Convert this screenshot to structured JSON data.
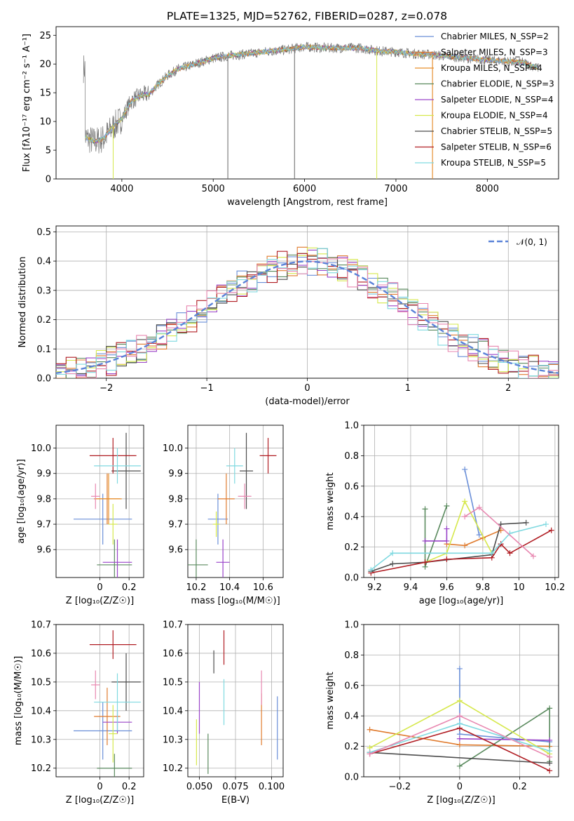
{
  "title": "PLATE=1325, MJD=52762, FIBERID=0287, z=0.078",
  "colors": {
    "chabrier_miles": "#6a8fd8",
    "salpeter_miles": "#e07b2e",
    "kroupa_miles": "#e78f2c",
    "chabrier_elodie": "#5a8a5e",
    "salpeter_elodie": "#9a44c9",
    "kroupa_elodie": "#d6e84c",
    "chabrier_stelib": "#4d4d4d",
    "salpeter_stelib": "#b01c22",
    "kroupa_stelib": "#7fd9e0",
    "normal_curve": "#5b83d8"
  },
  "chart_data": [
    {
      "id": "spectrum",
      "type": "line",
      "xlabel": "wavelength [Angstrom, rest frame]",
      "ylabel": "Flux [fλ10⁻¹⁷ erg cm⁻² s⁻¹ A⁻¹]",
      "xlim": [
        3280,
        8780
      ],
      "ylim": [
        0,
        26.5
      ],
      "xticks": [
        4000,
        5000,
        6000,
        7000,
        8000
      ],
      "yticks": [
        0,
        5,
        10,
        15,
        20,
        25
      ],
      "grid": false,
      "legend": "right",
      "legend_entries": [
        "Chabrier MILES, N_SSP=2",
        "Salpeter MILES, N_SSP=3",
        "Kroupa MILES, N_SSP=4",
        "Chabrier ELODIE, N_SSP=3",
        "Salpeter ELODIE, N_SSP=4",
        "Kroupa ELODIE, N_SSP=4",
        "Chabrier STELIB, N_SSP=5",
        "Salpeter STELIB, N_SSP=6",
        "Kroupa STELIB, N_SSP=5"
      ],
      "continuum": {
        "x": [
          3600,
          3700,
          3800,
          3900,
          4000,
          4100,
          4200,
          4300,
          4400,
          4500,
          4600,
          4700,
          4800,
          4900,
          5000,
          5200,
          5400,
          5600,
          5800,
          6000,
          6200,
          6400,
          6600,
          6800,
          7000,
          7200,
          7400,
          7600,
          7800,
          8000,
          8200,
          8400,
          8550
        ],
        "y": [
          7.2,
          6.5,
          7.0,
          9.0,
          10.5,
          13.5,
          14.5,
          14.8,
          16.5,
          18.0,
          19.0,
          19.5,
          20.0,
          20.5,
          21.0,
          21.5,
          21.8,
          22.2,
          22.5,
          23.0,
          22.8,
          22.8,
          22.8,
          22.3,
          22.1,
          21.8,
          21.6,
          21.3,
          21.0,
          20.7,
          20.5,
          20.2,
          19.3
        ]
      }
    },
    {
      "id": "residuals",
      "type": "area",
      "xlabel": "(data-model)/error",
      "ylabel": "Normed distribution",
      "xlim": [
        -2.5,
        2.5
      ],
      "ylim": [
        0,
        0.52
      ],
      "xticks": [
        -2,
        -1,
        0,
        1,
        2
      ],
      "yticks": [
        0.0,
        0.1,
        0.2,
        0.3,
        0.4,
        0.5
      ],
      "grid": true,
      "legend": "top-right",
      "legend_entries": [
        "𝒩(0, 1)"
      ],
      "bin_width": 0.1
    },
    {
      "id": "z_vs_age",
      "type": "scatter",
      "xlabel": "Z [log₁₀(Z/Z☉)]",
      "ylabel": "age  [log₁₀(age/yr)]",
      "xlim": [
        -0.3,
        0.3
      ],
      "ylim": [
        9.49,
        10.09
      ],
      "xticks": [
        0.0,
        0.2
      ],
      "yticks": [
        9.6,
        9.7,
        9.8,
        9.9,
        10.0
      ],
      "grid": true,
      "points": [
        {
          "model": "chabrier_miles",
          "x": 0.02,
          "y": 9.72,
          "xerr": 0.2,
          "yerr": 0.1
        },
        {
          "model": "salpeter_miles",
          "x": 0.05,
          "y": 9.8,
          "xerr": 0.09,
          "yerr": 0.1
        },
        {
          "model": "kroupa_miles",
          "x": 0.06,
          "y": 9.8,
          "xerr": 0.09,
          "yerr": 0.1
        },
        {
          "model": "chabrier_elodie",
          "x": 0.1,
          "y": 9.54,
          "xerr": 0.12,
          "yerr": 0.1
        },
        {
          "model": "salpeter_elodie",
          "x": 0.12,
          "y": 9.55,
          "xerr": 0.1,
          "yerr": 0.09
        },
        {
          "model": "kroupa_elodie",
          "x": 0.09,
          "y": 9.7,
          "xerr": 0.03,
          "yerr": 0.08
        },
        {
          "model": "chabrier_stelib",
          "x": 0.18,
          "y": 9.91,
          "xerr": 0.1,
          "yerr": 0.15
        },
        {
          "model": "salpeter_stelib",
          "x": 0.09,
          "y": 9.97,
          "xerr": 0.16,
          "yerr": 0.07
        },
        {
          "model": "kroupa_stelib",
          "x": 0.12,
          "y": 9.93,
          "xerr": 0.16,
          "yerr": 0.07
        },
        {
          "model": "pink",
          "x": -0.03,
          "y": 9.81,
          "xerr": 0.03,
          "yerr": 0.05
        }
      ]
    },
    {
      "id": "mass_vs_age",
      "type": "scatter",
      "xlabel": "mass [log₁₀(M/M☉)]",
      "ylabel": "",
      "xlim": [
        10.15,
        10.72
      ],
      "ylim": [
        9.49,
        10.09
      ],
      "xticks": [
        10.2,
        10.4,
        10.6
      ],
      "yticks": [
        9.6,
        9.7,
        9.8,
        9.9,
        10.0
      ],
      "grid": true,
      "points": [
        {
          "model": "chabrier_miles",
          "x": 10.33,
          "y": 9.72,
          "xerr": 0.06,
          "yerr": 0.1
        },
        {
          "model": "salpeter_miles",
          "x": 10.38,
          "y": 9.8,
          "xerr": 0.05,
          "yerr": 0.1
        },
        {
          "model": "chabrier_elodie",
          "x": 10.2,
          "y": 9.54,
          "xerr": 0.07,
          "yerr": 0.1
        },
        {
          "model": "salpeter_elodie",
          "x": 10.36,
          "y": 9.55,
          "xerr": 0.04,
          "yerr": 0.09
        },
        {
          "model": "kroupa_elodie",
          "x": 10.32,
          "y": 9.7,
          "xerr": 0.02,
          "yerr": 0.05
        },
        {
          "model": "chabrier_stelib",
          "x": 10.5,
          "y": 9.91,
          "xerr": 0.04,
          "yerr": 0.15
        },
        {
          "model": "salpeter_stelib",
          "x": 10.63,
          "y": 9.97,
          "xerr": 0.05,
          "yerr": 0.07
        },
        {
          "model": "kroupa_stelib",
          "x": 10.43,
          "y": 9.93,
          "xerr": 0.05,
          "yerr": 0.07
        },
        {
          "model": "pink",
          "x": 10.49,
          "y": 9.81,
          "xerr": 0.04,
          "yerr": 0.05
        }
      ]
    },
    {
      "id": "age_vs_weight",
      "type": "line",
      "xlabel": "age  [log₁₀(age/yr)]",
      "ylabel": "mass weight",
      "xlim": [
        9.14,
        10.22
      ],
      "ylim": [
        0,
        1
      ],
      "xticks": [
        9.2,
        9.4,
        9.6,
        9.8,
        10.0,
        10.2
      ],
      "yticks": [
        0.0,
        0.2,
        0.4,
        0.6,
        0.8,
        1.0
      ],
      "grid": true,
      "series": [
        {
          "model": "chabrier_miles",
          "x": [
            9.7,
            9.78
          ],
          "y": [
            0.71,
            0.28
          ]
        },
        {
          "model": "salpeter_miles",
          "x": [
            9.6,
            9.7,
            9.8,
            9.9
          ],
          "y": [
            0.22,
            0.21,
            0.26,
            0.31
          ]
        },
        {
          "model": "chabrier_elodie",
          "x": [
            9.48,
            9.48,
            9.6
          ],
          "y": [
            0.45,
            0.07,
            0.47
          ]
        },
        {
          "model": "salpeter_elodie",
          "x": [
            9.48,
            9.6,
            9.6
          ],
          "y": [
            0.24,
            0.24,
            0.32
          ]
        },
        {
          "model": "kroupa_elodie",
          "x": [
            9.48,
            9.6,
            9.7,
            9.85
          ],
          "y": [
            0.1,
            0.16,
            0.5,
            0.16
          ]
        },
        {
          "model": "chabrier_stelib",
          "x": [
            9.18,
            9.3,
            9.48,
            9.85,
            9.9,
            10.04
          ],
          "y": [
            0.04,
            0.09,
            0.1,
            0.15,
            0.35,
            0.36
          ]
        },
        {
          "model": "salpeter_stelib",
          "x": [
            9.18,
            9.48,
            9.6,
            9.85,
            9.9,
            9.95,
            10.18
          ],
          "y": [
            0.03,
            0.1,
            0.12,
            0.13,
            0.22,
            0.16,
            0.31
          ]
        },
        {
          "model": "kroupa_stelib",
          "x": [
            9.18,
            9.3,
            9.85,
            9.95,
            10.15
          ],
          "y": [
            0.05,
            0.16,
            0.16,
            0.29,
            0.35
          ]
        },
        {
          "model": "pink",
          "x": [
            9.7,
            9.78,
            10.08
          ],
          "y": [
            0.4,
            0.46,
            0.14
          ]
        }
      ]
    },
    {
      "id": "z_vs_mass",
      "type": "scatter",
      "xlabel": "Z [log₁₀(Z/Z☉)]",
      "ylabel": "mass [log₁₀(M/M☉)]",
      "xlim": [
        -0.3,
        0.3
      ],
      "ylim": [
        10.17,
        10.7
      ],
      "xticks": [
        0.0,
        0.2
      ],
      "yticks": [
        10.2,
        10.3,
        10.4,
        10.5,
        10.6,
        10.7
      ],
      "grid": true,
      "points": [
        {
          "model": "chabrier_miles",
          "x": 0.02,
          "y": 10.33,
          "xerr": 0.2,
          "yerr": 0.1
        },
        {
          "model": "salpeter_miles",
          "x": 0.05,
          "y": 10.38,
          "xerr": 0.09,
          "yerr": 0.1
        },
        {
          "model": "chabrier_elodie",
          "x": 0.1,
          "y": 10.2,
          "xerr": 0.12,
          "yerr": 0.05
        },
        {
          "model": "salpeter_elodie",
          "x": 0.12,
          "y": 10.36,
          "xerr": 0.1,
          "yerr": 0.04
        },
        {
          "model": "kroupa_elodie",
          "x": 0.09,
          "y": 10.32,
          "xerr": 0.03,
          "yerr": 0.1
        },
        {
          "model": "chabrier_stelib",
          "x": 0.18,
          "y": 10.5,
          "xerr": 0.1,
          "yerr": 0.1
        },
        {
          "model": "salpeter_stelib",
          "x": 0.09,
          "y": 10.63,
          "xerr": 0.16,
          "yerr": 0.05
        },
        {
          "model": "kroupa_stelib",
          "x": 0.12,
          "y": 10.43,
          "xerr": 0.16,
          "yerr": 0.1
        },
        {
          "model": "pink",
          "x": -0.03,
          "y": 10.49,
          "xerr": 0.03,
          "yerr": 0.05
        }
      ]
    },
    {
      "id": "ebv_vs_mass",
      "type": "scatter",
      "xlabel": "E(B-V)",
      "ylabel": "",
      "xlim": [
        0.042,
        0.108
      ],
      "ylim": [
        10.17,
        10.7
      ],
      "xticks": [
        0.05,
        0.075,
        0.1
      ],
      "xticklabels": [
        "0.050",
        "0.075",
        "0.100"
      ],
      "yticks": [
        10.2,
        10.3,
        10.4,
        10.5,
        10.6,
        10.7
      ],
      "grid": true,
      "points": [
        {
          "model": "kroupa_elodie",
          "x": 0.048,
          "y": 10.29,
          "yerr": 0.08
        },
        {
          "model": "salpeter_elodie",
          "x": 0.05,
          "y": 10.41,
          "yerr": 0.09
        },
        {
          "model": "chabrier_elodie",
          "x": 0.056,
          "y": 10.25,
          "yerr": 0.07
        },
        {
          "model": "chabrier_stelib",
          "x": 0.06,
          "y": 10.57,
          "yerr": 0.04
        },
        {
          "model": "salpeter_stelib",
          "x": 0.067,
          "y": 10.62,
          "yerr": 0.06
        },
        {
          "model": "kroupa_stelib",
          "x": 0.067,
          "y": 10.43,
          "yerr": 0.08
        },
        {
          "model": "salpeter_miles",
          "x": 0.093,
          "y": 10.37,
          "yerr": 0.09
        },
        {
          "model": "pink",
          "x": 0.093,
          "y": 10.48,
          "yerr": 0.06
        },
        {
          "model": "chabrier_miles",
          "x": 0.104,
          "y": 10.34,
          "yerr": 0.11
        }
      ]
    },
    {
      "id": "z_vs_weight",
      "type": "line",
      "xlabel": "Z [log₁₀(Z/Z☉)]",
      "ylabel": "mass weight",
      "xlim": [
        -0.32,
        0.33
      ],
      "ylim": [
        0,
        1
      ],
      "xticks": [
        -0.2,
        0.0,
        0.2
      ],
      "yticks": [
        0.0,
        0.2,
        0.4,
        0.6,
        0.8,
        1.0
      ],
      "grid": true,
      "series": [
        {
          "model": "chabrier_miles",
          "x": [
            0.0,
            0.0,
            0.3
          ],
          "y": [
            0.71,
            0.28,
            0.23
          ]
        },
        {
          "model": "salpeter_miles",
          "x": [
            -0.3,
            0.0,
            0.3
          ],
          "y": [
            0.31,
            0.21,
            0.2
          ]
        },
        {
          "model": "chabrier_elodie",
          "x": [
            0.0,
            0.3,
            0.3
          ],
          "y": [
            0.07,
            0.45,
            0.1
          ]
        },
        {
          "model": "salpeter_elodie",
          "x": [
            0.0,
            0.3
          ],
          "y": [
            0.25,
            0.24
          ]
        },
        {
          "model": "kroupa_elodie",
          "x": [
            -0.3,
            0.0,
            0.3
          ],
          "y": [
            0.19,
            0.5,
            0.15
          ]
        },
        {
          "model": "chabrier_stelib",
          "x": [
            -0.3,
            0.3
          ],
          "y": [
            0.16,
            0.09
          ]
        },
        {
          "model": "salpeter_stelib",
          "x": [
            -0.3,
            0.0,
            0.3
          ],
          "y": [
            0.15,
            0.32,
            0.04
          ]
        },
        {
          "model": "kroupa_stelib",
          "x": [
            -0.3,
            0.0,
            0.3
          ],
          "y": [
            0.16,
            0.35,
            0.17
          ]
        },
        {
          "model": "pink",
          "x": [
            -0.3,
            0.0,
            0.3
          ],
          "y": [
            0.15,
            0.4,
            0.13
          ]
        }
      ]
    }
  ]
}
